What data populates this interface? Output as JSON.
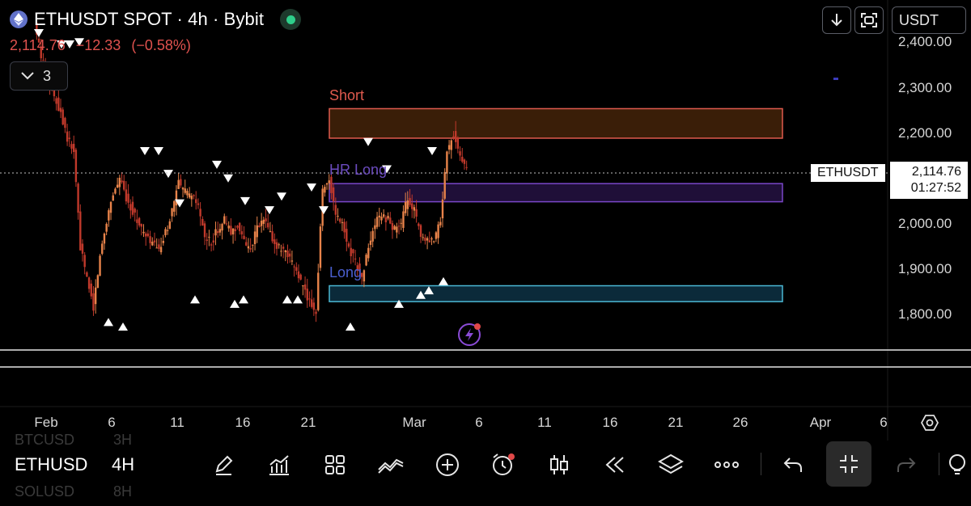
{
  "header": {
    "symbol_title": "ETHUSDT SPOT · 4h · Bybit",
    "last_price": "2,114.76",
    "change": "−12.33",
    "change_pct": "(−0.58%)",
    "indicator_count": "3",
    "currency": "USDT"
  },
  "chart_data": {
    "type": "candlestick",
    "y_ticks": [
      "2,400.00",
      "2,300.00",
      "2,200.00",
      "2,000.00",
      "1,900.00",
      "1,800.00"
    ],
    "x_ticks": [
      "Feb",
      "6",
      "11",
      "16",
      "21",
      "Mar",
      "6",
      "11",
      "16",
      "21",
      "26",
      "Apr",
      "6"
    ],
    "ylim": [
      1800,
      2400
    ],
    "current_price": 2114.76,
    "current_price_label": "2,114.76",
    "countdown": "01:27:52",
    "symbol_tag": "ETHUSDT",
    "zones": [
      {
        "label": "Short",
        "low": 2190,
        "high": 2255,
        "color": "#e05a4e",
        "fill": "#3a1e08"
      },
      {
        "label": "HR Long",
        "low": 2050,
        "high": 2090,
        "color": "#7a47c9",
        "fill": "#1f0f38"
      },
      {
        "label": "Long",
        "low": 1830,
        "high": 1865,
        "color": "#4ab7d3",
        "fill": "#0b2a3a"
      }
    ],
    "price_path": [
      2440,
      2370,
      2330,
      2280,
      2250,
      2190,
      2160,
      1950,
      1880,
      1820,
      1930,
      2010,
      2070,
      2100,
      2060,
      2030,
      2000,
      1970,
      1960,
      1940,
      1980,
      2030,
      2090,
      2070,
      2060,
      2040,
      1970,
      1960,
      1990,
      2010,
      1980,
      2000,
      1960,
      1950,
      1990,
      2010,
      1980,
      1950,
      1940,
      1920,
      1900,
      1860,
      1830,
      1810,
      2080,
      2100,
      2020,
      2000,
      1950,
      1920,
      1880,
      1950,
      2000,
      2020,
      2010,
      1990,
      2000,
      2060,
      2030,
      1970,
      1960,
      1960,
      2010,
      2160,
      2200,
      2150,
      2120
    ],
    "sell_markers": [
      [
        2330,
        2400
      ],
      [
        2310,
        2375
      ],
      [
        2310,
        2375
      ],
      [
        2340,
        2380
      ],
      [
        2200,
        2140
      ],
      [
        2200,
        2140
      ],
      [
        2080,
        2090
      ],
      [
        2000,
        2025
      ],
      [
        2030,
        2110
      ],
      [
        2100,
        2080
      ],
      [
        1990,
        2030
      ],
      [
        2020,
        2010
      ],
      [
        2030,
        2040
      ],
      [
        2050,
        2060
      ],
      [
        2000,
        2010
      ],
      [
        2060,
        2160
      ],
      [
        2120,
        2100
      ],
      [
        2090,
        2140
      ]
    ],
    "buy_markers": [
      [
        1920,
        1810
      ],
      [
        1910,
        1800
      ],
      [
        1890,
        1860
      ],
      [
        1900,
        1850
      ],
      [
        1920,
        1860
      ],
      [
        1910,
        1860
      ],
      [
        1920,
        1860
      ],
      [
        1840,
        1800
      ],
      [
        1950,
        1850
      ],
      [
        1900,
        1870
      ],
      [
        1940,
        1880
      ],
      [
        1960,
        1900
      ]
    ]
  },
  "toolbar": {
    "symbol": "ETHUSD",
    "interval": "4H",
    "ghost_above_symbol": "BTCUSD",
    "ghost_above_interval": "3H",
    "ghost_below_symbol": "SOLUSD",
    "ghost_below_interval": "8H"
  },
  "colors": {
    "candle": "#e8834a",
    "candle_dark": "#c0392b",
    "negative": "#e0524e",
    "live": "#2ecf8a"
  },
  "icons": [
    "eth-logo-icon",
    "live-status-icon",
    "chevron-down-icon",
    "download-arrow-icon",
    "fullscreen-icon",
    "flash-alert-icon",
    "settings-icon",
    "pen-icon",
    "indicators-icon",
    "templates-icon",
    "drawing-tools-icon",
    "add-icon",
    "alarm-icon",
    "candles-icon",
    "replay-icon",
    "layers-icon",
    "more-icon",
    "undo-icon",
    "exit-fullscreen-icon",
    "redo-icon"
  ]
}
